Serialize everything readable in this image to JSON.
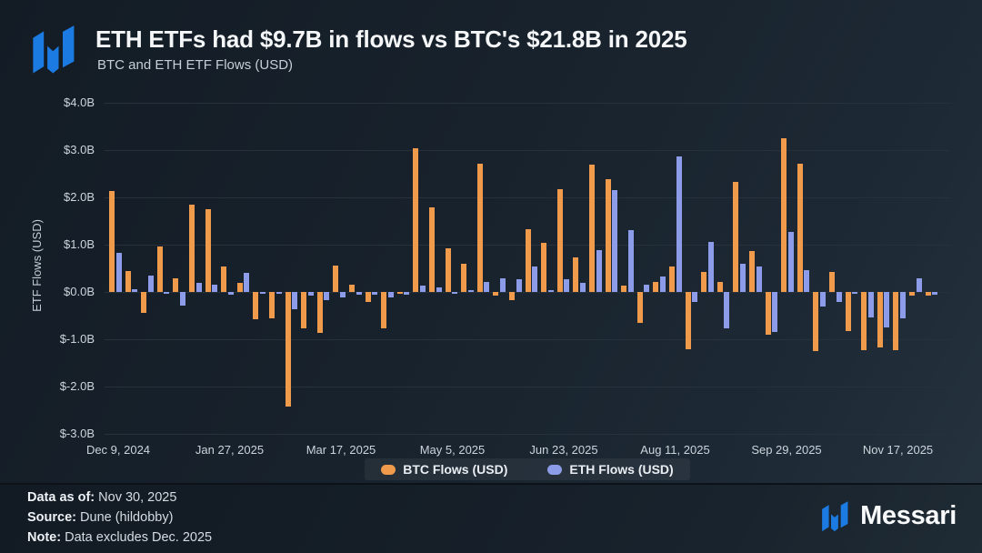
{
  "header": {
    "title": "ETH ETFs had $9.7B in flows vs BTC's $21.8B in 2025",
    "subtitle": "BTC and ETH ETF Flows (USD)"
  },
  "chart_data": {
    "type": "bar",
    "title": "BTC and ETH ETF Flows (USD)",
    "xlabel": "",
    "ylabel": "ETF Flows (USD)",
    "unit": "billions USD",
    "ylim": [
      -3.0,
      4.0
    ],
    "grid": true,
    "legend_position": "bottom",
    "y_tick_labels": [
      "$4.0B",
      "$3.0B",
      "$2.0B",
      "$1.0B",
      "$0.0B",
      "$-1.0B",
      "$-2.0B",
      "$-3.0B"
    ],
    "x_tick_labels": [
      "Dec 9, 2024",
      "Jan 27, 2025",
      "Mar 17, 2025",
      "May 5, 2025",
      "Jun 23, 2025",
      "Aug 11, 2025",
      "Sep 29, 2025",
      "Nov 17, 2025"
    ],
    "categories": [
      "Dec 9, 2024",
      "Dec 16, 2024",
      "Dec 23, 2024",
      "Dec 30, 2024",
      "Jan 6, 2025",
      "Jan 13, 2025",
      "Jan 20, 2025",
      "Jan 27, 2025",
      "Feb 3, 2025",
      "Feb 10, 2025",
      "Feb 17, 2025",
      "Feb 24, 2025",
      "Mar 3, 2025",
      "Mar 10, 2025",
      "Mar 17, 2025",
      "Mar 24, 2025",
      "Mar 31, 2025",
      "Apr 7, 2025",
      "Apr 14, 2025",
      "Apr 21, 2025",
      "Apr 28, 2025",
      "May 5, 2025",
      "May 12, 2025",
      "May 19, 2025",
      "May 26, 2025",
      "Jun 2, 2025",
      "Jun 9, 2025",
      "Jun 16, 2025",
      "Jun 23, 2025",
      "Jun 30, 2025",
      "Jul 7, 2025",
      "Jul 14, 2025",
      "Jul 21, 2025",
      "Jul 28, 2025",
      "Aug 4, 2025",
      "Aug 11, 2025",
      "Aug 18, 2025",
      "Aug 25, 2025",
      "Sep 1, 2025",
      "Sep 8, 2025",
      "Sep 15, 2025",
      "Sep 22, 2025",
      "Sep 29, 2025",
      "Oct 6, 2025",
      "Oct 13, 2025",
      "Oct 20, 2025",
      "Oct 27, 2025",
      "Nov 3, 2025",
      "Nov 10, 2025",
      "Nov 17, 2025",
      "Nov 24, 2025",
      "Dec 1, 2025"
    ],
    "series": [
      {
        "name": "BTC Flows (USD)",
        "color": "#f09a4b",
        "values": [
          2.13,
          0.45,
          -0.45,
          0.96,
          0.29,
          1.84,
          1.75,
          0.53,
          0.2,
          -0.58,
          -0.55,
          -2.42,
          -0.76,
          -0.86,
          0.55,
          0.15,
          -0.22,
          -0.77,
          -0.03,
          3.04,
          1.78,
          0.92,
          0.6,
          2.72,
          -0.08,
          -0.17,
          1.32,
          1.03,
          2.17,
          0.73,
          2.69,
          2.39,
          0.13,
          -0.66,
          0.22,
          0.54,
          -1.21,
          0.43,
          0.22,
          2.32,
          0.87,
          -0.91,
          3.25,
          2.71,
          -1.25,
          0.43,
          -0.83,
          -1.23,
          -1.17,
          -1.24,
          -0.07,
          -0.08
        ]
      },
      {
        "name": "ETH Flows (USD)",
        "color": "#8c9ce8",
        "values": [
          0.82,
          0.06,
          0.35,
          -0.04,
          -0.28,
          0.19,
          0.15,
          -0.05,
          0.41,
          -0.03,
          -0.01,
          -0.37,
          -0.08,
          -0.18,
          -0.11,
          -0.05,
          -0.06,
          -0.12,
          -0.05,
          0.14,
          0.1,
          -0.02,
          0.02,
          0.22,
          0.29,
          0.27,
          0.53,
          0.03,
          0.27,
          0.2,
          0.89,
          2.15,
          1.3,
          0.16,
          0.32,
          2.87,
          -0.22,
          1.06,
          -0.76,
          0.6,
          0.54,
          -0.85,
          1.27,
          0.46,
          -0.3,
          -0.22,
          -0.03,
          -0.53,
          -0.75,
          -0.55,
          0.28,
          -0.05
        ]
      }
    ]
  },
  "legend": {
    "items": [
      {
        "label": "BTC Flows (USD)",
        "color": "#f09a4b"
      },
      {
        "label": "ETH Flows (USD)",
        "color": "#8c9ce8"
      }
    ]
  },
  "footer": {
    "rows": [
      {
        "label": "Data as of:",
        "value": "Nov 30, 2025"
      },
      {
        "label": "Source:",
        "value": "Dune (hildobby)"
      },
      {
        "label": "Note:",
        "value": "Data excludes Dec. 2025"
      }
    ],
    "brand": "Messari"
  },
  "icons": {
    "brand_mark": "messari-logo-mark",
    "brand_color": "#1b7be3"
  }
}
